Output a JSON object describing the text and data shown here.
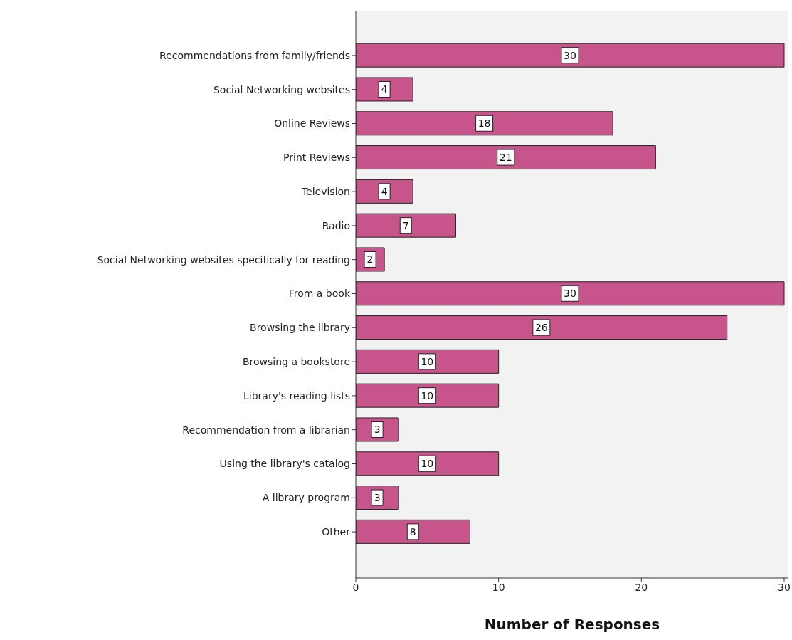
{
  "chart_data": {
    "type": "bar",
    "orientation": "horizontal",
    "xlabel": "Number of Responses",
    "categories": [
      "Recommendations from family/friends",
      "Social Networking websites",
      "Online Reviews",
      "Print Reviews",
      "Television",
      "Radio",
      "Social Networking websites specifically for reading",
      "From a book",
      "Browsing the library",
      "Browsing a bookstore",
      "Library's reading lists",
      "Recommendation from a librarian",
      "Using the library's catalog",
      "A library program",
      "Other"
    ],
    "values": [
      30,
      4,
      18,
      21,
      4,
      7,
      2,
      30,
      26,
      10,
      10,
      3,
      10,
      3,
      8
    ],
    "color": "#c8548c",
    "xlim": [
      0,
      30.3
    ],
    "xticks": [
      0,
      10,
      20,
      30
    ],
    "data_labels": true,
    "grid": false
  }
}
